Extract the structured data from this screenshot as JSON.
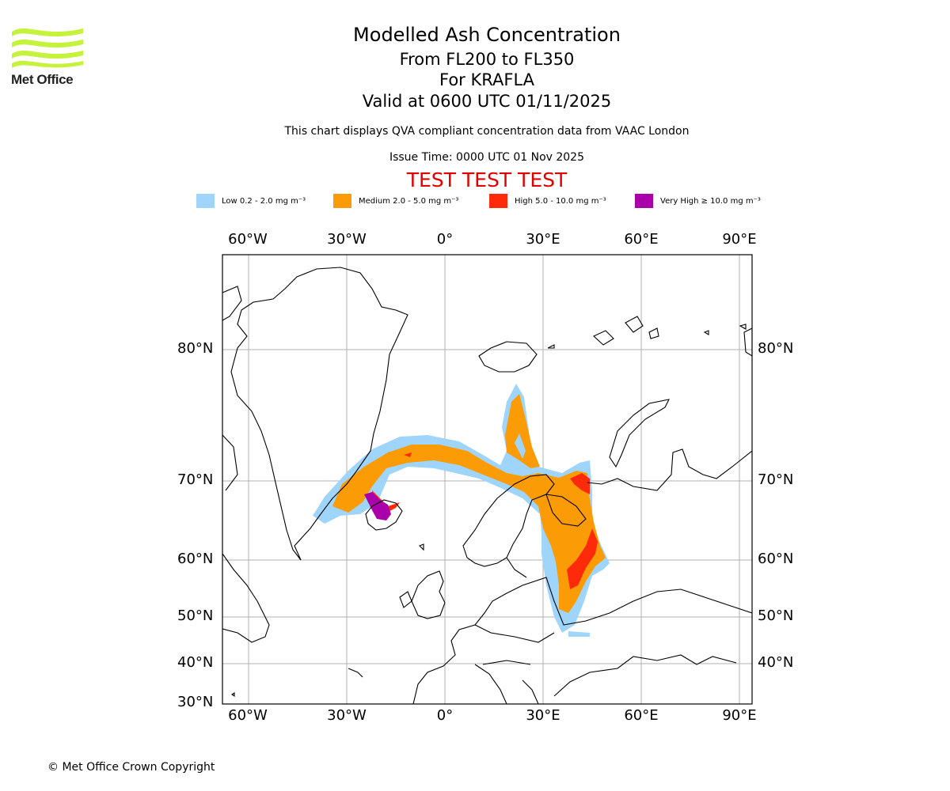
{
  "header": {
    "logo_text": "Met Office",
    "title": "Modelled Ash Concentration",
    "level_range": "From FL200 to FL350",
    "volcano": "For KRAFLA",
    "valid_time": "Valid at 0600 UTC 01/11/2025",
    "description": "This chart displays QVA compliant concentration data from VAAC London",
    "issue_time": "Issue Time: 0000 UTC 01 Nov 2025",
    "test_banner": "TEST TEST TEST"
  },
  "legend": [
    {
      "label": "Low 0.2 - 2.0 mg m⁻³",
      "color": "#9fd5fb"
    },
    {
      "label": "Medium 2.0 - 5.0 mg m⁻³",
      "color": "#fb9b06"
    },
    {
      "label": "High 5.0 - 10.0 mg m⁻³",
      "color": "#ff2a0a"
    },
    {
      "label": "Very High ≥ 10.0 mg m⁻³",
      "color": "#aa00aa"
    }
  ],
  "axes": {
    "longitude_labels": [
      "60°W",
      "30°W",
      "0°",
      "30°E",
      "60°E",
      "90°E"
    ],
    "latitude_labels_left": [
      "80°N",
      "70°N",
      "60°N",
      "50°N",
      "40°N",
      "30°N"
    ],
    "latitude_labels_right": [
      "80°N",
      "70°N",
      "60°N",
      "50°N",
      "40°N"
    ]
  },
  "colors": {
    "grid": "#b0b0b0",
    "logo_green": "#c5f23a",
    "test_red": "#e00000"
  },
  "footer": {
    "copyright": "© Met Office Crown Copyright"
  }
}
